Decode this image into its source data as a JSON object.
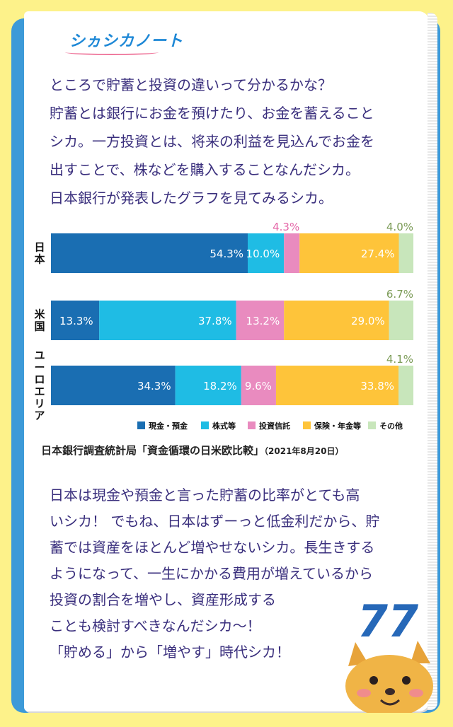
{
  "note": {
    "title": "シヵシカノート"
  },
  "intro_lines": [
    "ところで貯蓄と投資の違いって分かるかな？",
    "貯蓄とは銀行にお金を預けたり、お金を蓄えること",
    "シカ。一方投資とは、将来の利益を見込んでお金を",
    "出すことで、株などを購入することなんだシカ。",
    "日本銀行が発表したグラフを見てみるシカ。"
  ],
  "chart_data": {
    "type": "bar",
    "orientation": "horizontal-stacked-percent",
    "categories": [
      "日本",
      "米国",
      "ユーロエリア"
    ],
    "series": [
      {
        "name": "現金・預金",
        "color": "#1a6eb2",
        "values": [
          54.3,
          13.3,
          34.3
        ]
      },
      {
        "name": "株式等",
        "color": "#1fbce4",
        "values": [
          10.0,
          37.8,
          18.2
        ]
      },
      {
        "name": "投資信託",
        "color": "#e98bbf",
        "values": [
          4.3,
          13.2,
          9.6
        ]
      },
      {
        "name": "保険・年金等",
        "color": "#fec43a",
        "values": [
          27.4,
          29.0,
          33.8
        ]
      },
      {
        "name": "その他",
        "color": "#c8e6bb",
        "values": [
          4.0,
          6.7,
          4.1
        ]
      }
    ],
    "labels": [
      [
        "54.3%",
        "10.0%",
        "4.3%",
        "27.4%",
        "4.0%"
      ],
      [
        "13.3%",
        "37.8%",
        "13.2%",
        "29.0%",
        "6.7%"
      ],
      [
        "34.3%",
        "18.2%",
        "9.6%",
        "33.8%",
        "4.1%"
      ]
    ],
    "xlim": [
      0,
      100
    ],
    "legend_position": "bottom-right",
    "grid": false
  },
  "source": {
    "main": "日本銀行調査統計局「資金循環の日米欧比較」",
    "date": "（2021年8月20日）"
  },
  "outro_lines": [
    "日本は現金や預金と言った貯蓄の比率がとても高",
    "いシカ！ でもね、日本はずーっと低金利だから、貯",
    "蓄では資産をほとんど増やせないシカ。長生きする",
    "ようになって、一生にかかる費用が増えているから",
    "投資の割合を増やし、資産形成する",
    "ことも検討すべきなんだシカ〜！",
    "「貯める」から「増やす」時代シカ！"
  ],
  "page_number": "77"
}
